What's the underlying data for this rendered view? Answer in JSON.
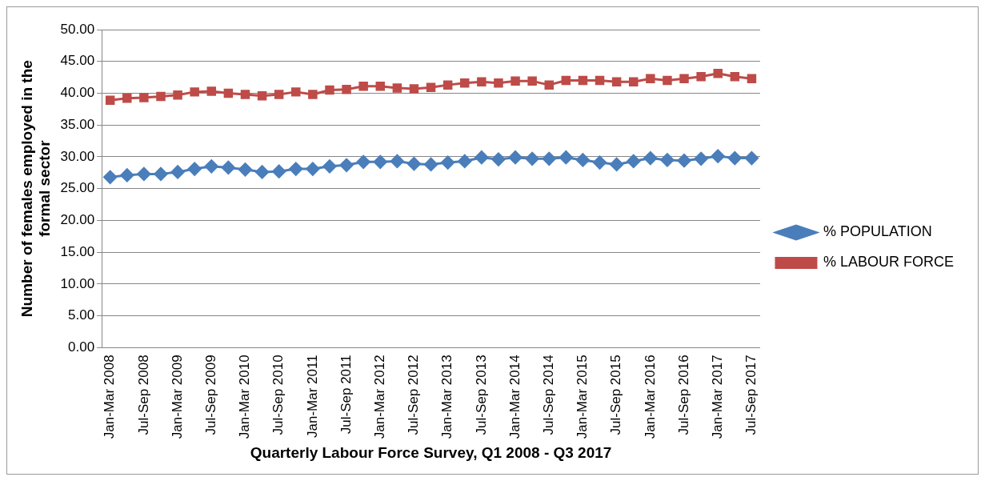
{
  "chart_data": {
    "type": "line",
    "xlabel": "Quarterly Labour Force Survey, Q1 2008 - Q3 2017",
    "ylabel": "Number of females employed in the formal sector",
    "categories": [
      "Jan-Mar 2008",
      null,
      "Jul-Sep 2008",
      null,
      "Jan-Mar 2009",
      null,
      "Jul-Sep 2009",
      null,
      "Jan-Mar 2010",
      null,
      "Jul-Sep 2010",
      null,
      "Jan-Mar 2011",
      null,
      "Jul-Sep 2011",
      null,
      "Jan-Mar 2012",
      null,
      "Jul-Sep 2012",
      null,
      "Jan-Mar 2013",
      null,
      "Jul-Sep 2013",
      null,
      "Jan-Mar 2014",
      null,
      "Jul-Sep 2014",
      null,
      "Jan-Mar 2015",
      null,
      "Jul-Sep 2015",
      null,
      "Jan-Mar 2016",
      null,
      "Jul-Sep 2016",
      null,
      "Jan-Mar 2017",
      null,
      "Jul-Sep 2017"
    ],
    "series": [
      {
        "name": "% POPULATION",
        "color": "#4a7ebb",
        "marker": "diamond",
        "values": [
          26.8,
          27.1,
          27.3,
          27.3,
          27.6,
          28.1,
          28.5,
          28.3,
          28.0,
          27.6,
          27.7,
          28.1,
          28.1,
          28.5,
          28.7,
          29.2,
          29.2,
          29.3,
          28.9,
          28.8,
          29.1,
          29.3,
          29.9,
          29.6,
          29.9,
          29.7,
          29.7,
          29.9,
          29.5,
          29.1,
          28.8,
          29.3,
          29.8,
          29.5,
          29.4,
          29.7,
          30.1,
          29.8,
          29.8
        ]
      },
      {
        "name": "% LABOUR FORCE",
        "color": "#be4b48",
        "marker": "square",
        "values": [
          38.9,
          39.2,
          39.3,
          39.5,
          39.7,
          40.2,
          40.3,
          40.0,
          39.8,
          39.6,
          39.8,
          40.2,
          39.8,
          40.5,
          40.6,
          41.1,
          41.1,
          40.8,
          40.7,
          40.9,
          41.3,
          41.6,
          41.8,
          41.6,
          41.9,
          41.9,
          41.3,
          42.0,
          42.0,
          42.0,
          41.8,
          41.8,
          42.3,
          42.0,
          42.3,
          42.6,
          43.1,
          42.6,
          42.3
        ]
      }
    ],
    "ylim": [
      0,
      50
    ],
    "yticks": [
      {
        "value": 0,
        "label": "0.00"
      },
      {
        "value": 5,
        "label": "5.00"
      },
      {
        "value": 10,
        "label": "10.00"
      },
      {
        "value": 15,
        "label": "15.00"
      },
      {
        "value": 20,
        "label": "20.00"
      },
      {
        "value": 25,
        "label": "25.00"
      },
      {
        "value": 30,
        "label": "30.00"
      },
      {
        "value": 35,
        "label": "35.00"
      },
      {
        "value": 40,
        "label": "40.00"
      },
      {
        "value": 45,
        "label": "45.00"
      },
      {
        "value": 50,
        "label": "50.00"
      }
    ],
    "grid": "y",
    "legend": "right",
    "line_style": "solid"
  }
}
